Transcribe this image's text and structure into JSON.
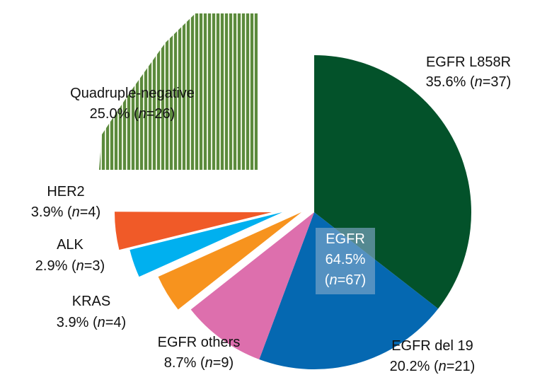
{
  "chart_data": {
    "type": "pie",
    "title": "",
    "slices": [
      {
        "label": "EGFR L858R",
        "percent_text": "35.6%",
        "n": 37,
        "value": 35.6,
        "color": "#03522a",
        "pattern": "none"
      },
      {
        "label": "EGFR del 19",
        "percent_text": "20.2%",
        "n": 21,
        "value": 20.2,
        "color": "#0568b1",
        "pattern": "none"
      },
      {
        "label": "EGFR others",
        "percent_text": "8.7%",
        "n": 9,
        "value": 8.7,
        "color": "#dd6fad",
        "pattern": "none"
      },
      {
        "label": "KRAS",
        "percent_text": "3.9%",
        "n": 4,
        "value": 3.9,
        "color": "#f7931e",
        "pattern": "none"
      },
      {
        "label": "ALK",
        "percent_text": "2.9%",
        "n": 3,
        "value": 2.9,
        "color": "#00b0ef",
        "pattern": "none"
      },
      {
        "label": "HER2",
        "percent_text": "3.9%",
        "n": 4,
        "value": 3.9,
        "color": "#f05a28",
        "pattern": "none"
      },
      {
        "label": "Quadruple-negative",
        "percent_text": "25.0%",
        "n": 26,
        "value": 25.0,
        "color": "#5b8a3c",
        "pattern": "vertical-stripes"
      }
    ],
    "group_annotation": {
      "label": "EGFR",
      "percent_text": "64.5%",
      "n": 67
    }
  }
}
